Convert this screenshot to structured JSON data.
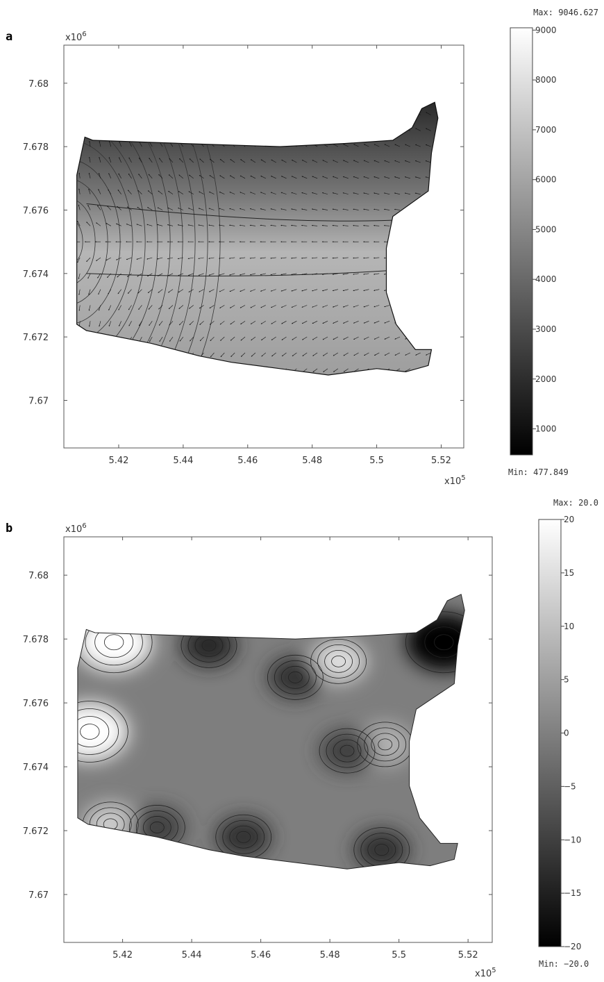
{
  "chart_data": [
    {
      "panel": "a",
      "type": "heatmap",
      "overlay": "quiver arrows and contour lines",
      "x_ticks": [
        5.42,
        5.44,
        5.46,
        5.48,
        5.5,
        5.52
      ],
      "x_tick_labels": [
        "5.42",
        "5.44",
        "5.46",
        "5.48",
        "5.5",
        "5.52"
      ],
      "x_multiplier": "x10",
      "x_multiplier_exp": "5",
      "xlim": [
        5.403,
        5.527
      ],
      "y_ticks": [
        7.67,
        7.672,
        7.674,
        7.676,
        7.678,
        7.68
      ],
      "y_tick_labels": [
        "7.67",
        "7.672",
        "7.674",
        "7.676",
        "7.678",
        "7.68"
      ],
      "y_multiplier": "x10",
      "y_multiplier_exp": "6",
      "ylim": [
        7.6685,
        7.6812
      ],
      "colorbar": {
        "max_label": "Max: 9046.627",
        "min_label": "Min: 477.849",
        "max": 9046.627,
        "min": 477.849,
        "ticks": [
          1000,
          2000,
          3000,
          4000,
          5000,
          6000,
          7000,
          8000,
          9000
        ],
        "tick_labels": [
          "1000",
          "2000",
          "3000",
          "4000",
          "5000",
          "6000",
          "7000",
          "8000",
          "9000"
        ],
        "colormap": "grayscale (black = min, white = max)"
      },
      "domain_outline": [
        [
          5.4095,
          7.6783
        ],
        [
          5.412,
          7.6782
        ],
        [
          5.44,
          7.6781
        ],
        [
          5.47,
          7.678
        ],
        [
          5.49,
          7.6781
        ],
        [
          5.505,
          7.6782
        ],
        [
          5.511,
          7.6786
        ],
        [
          5.514,
          7.6792
        ],
        [
          5.518,
          7.6794
        ],
        [
          5.519,
          7.6789
        ],
        [
          5.517,
          7.6778
        ],
        [
          5.516,
          7.6766
        ],
        [
          5.505,
          7.6758
        ],
        [
          5.503,
          7.6748
        ],
        [
          5.503,
          7.6734
        ],
        [
          5.506,
          7.6724
        ],
        [
          5.512,
          7.6716
        ],
        [
          5.517,
          7.6716
        ],
        [
          5.516,
          7.6711
        ],
        [
          5.509,
          7.6709
        ],
        [
          5.5,
          7.671
        ],
        [
          5.485,
          7.6708
        ],
        [
          5.47,
          7.671
        ],
        [
          5.455,
          7.6712
        ],
        [
          5.445,
          7.6714
        ],
        [
          5.43,
          7.6718
        ],
        [
          5.41,
          7.6722
        ],
        [
          5.407,
          7.6724
        ],
        [
          5.407,
          7.6771
        ]
      ]
    },
    {
      "panel": "b",
      "type": "heatmap",
      "overlay": "contour lines",
      "x_ticks": [
        5.42,
        5.44,
        5.46,
        5.48,
        5.5,
        5.52
      ],
      "x_tick_labels": [
        "5.42",
        "5.44",
        "5.46",
        "5.48",
        "5.5",
        "5.52"
      ],
      "x_multiplier": "x10",
      "x_multiplier_exp": "5",
      "xlim": [
        5.403,
        5.527
      ],
      "y_ticks": [
        7.67,
        7.672,
        7.674,
        7.676,
        7.678,
        7.68
      ],
      "y_tick_labels": [
        "7.67",
        "7.672",
        "7.674",
        "7.676",
        "7.678",
        "7.68"
      ],
      "y_multiplier": "x10",
      "y_multiplier_exp": "6",
      "ylim": [
        7.6685,
        7.6812
      ],
      "colorbar": {
        "max_label": "Max: 20.0",
        "min_label": "Min: −20.0",
        "max": 20,
        "min": -20,
        "ticks": [
          -20,
          -15,
          -10,
          -5,
          0,
          5,
          10,
          15,
          20
        ],
        "tick_labels": [
          "−20",
          "−15",
          "−10",
          "−5",
          "0",
          "5",
          "10",
          "15",
          "20"
        ],
        "colormap": "grayscale (black = min, white = max)"
      },
      "domain_outline": [
        [
          5.4095,
          7.6783
        ],
        [
          5.412,
          7.6782
        ],
        [
          5.44,
          7.6781
        ],
        [
          5.47,
          7.678
        ],
        [
          5.49,
          7.6781
        ],
        [
          5.505,
          7.6782
        ],
        [
          5.511,
          7.6786
        ],
        [
          5.514,
          7.6792
        ],
        [
          5.518,
          7.6794
        ],
        [
          5.519,
          7.6789
        ],
        [
          5.517,
          7.6778
        ],
        [
          5.516,
          7.6766
        ],
        [
          5.505,
          7.6758
        ],
        [
          5.503,
          7.6748
        ],
        [
          5.503,
          7.6734
        ],
        [
          5.506,
          7.6724
        ],
        [
          5.512,
          7.6716
        ],
        [
          5.517,
          7.6716
        ],
        [
          5.516,
          7.6711
        ],
        [
          5.509,
          7.6709
        ],
        [
          5.5,
          7.671
        ],
        [
          5.485,
          7.6708
        ],
        [
          5.47,
          7.671
        ],
        [
          5.455,
          7.6712
        ],
        [
          5.445,
          7.6714
        ],
        [
          5.43,
          7.6718
        ],
        [
          5.41,
          7.6722
        ],
        [
          5.407,
          7.6724
        ],
        [
          5.407,
          7.6771
        ]
      ],
      "hotspots": [
        {
          "x": 5.4105,
          "y": 7.6751,
          "value": 20
        },
        {
          "x": 5.4175,
          "y": 7.6779,
          "value": 20
        },
        {
          "x": 5.4825,
          "y": 7.6773,
          "value": 15
        },
        {
          "x": 5.4165,
          "y": 7.6722,
          "value": 12
        },
        {
          "x": 5.496,
          "y": 7.6747,
          "value": 8
        },
        {
          "x": 5.513,
          "y": 7.6779,
          "value": -20
        },
        {
          "x": 5.445,
          "y": 7.6778,
          "value": -14
        },
        {
          "x": 5.47,
          "y": 7.6768,
          "value": -12
        },
        {
          "x": 5.485,
          "y": 7.6745,
          "value": -10
        },
        {
          "x": 5.495,
          "y": 7.6714,
          "value": -12
        },
        {
          "x": 5.455,
          "y": 7.6718,
          "value": -12
        },
        {
          "x": 5.43,
          "y": 7.6721,
          "value": -10
        }
      ]
    }
  ]
}
